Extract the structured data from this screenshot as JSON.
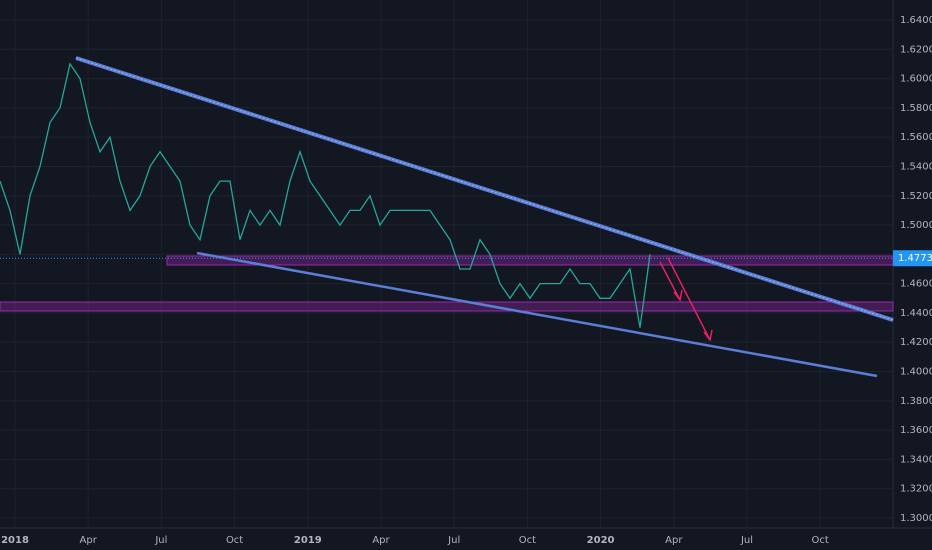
{
  "chart_data": {
    "type": "line",
    "color": "#26a69a",
    "values": [
      1.53,
      1.51,
      1.48,
      1.52,
      1.54,
      1.57,
      1.58,
      1.61,
      1.6,
      1.57,
      1.55,
      1.56,
      1.53,
      1.51,
      1.52,
      1.54,
      1.55,
      1.54,
      1.53,
      1.5,
      1.49,
      1.52,
      1.53,
      1.53,
      1.49,
      1.51,
      1.5,
      1.51,
      1.5,
      1.53,
      1.55,
      1.53,
      1.52,
      1.51,
      1.5,
      1.51,
      1.51,
      1.52,
      1.5,
      1.51,
      1.51,
      1.51,
      1.51,
      1.51,
      1.5,
      1.49,
      1.47,
      1.47,
      1.49,
      1.48,
      1.46,
      1.45,
      1.46,
      1.45,
      1.46,
      1.46,
      1.46,
      1.47,
      1.46,
      1.46,
      1.45,
      1.45,
      1.46,
      1.47,
      1.43,
      1.48
    ],
    "ylim": [
      1.3,
      1.64
    ],
    "yticks": [
      {
        "value": 1.3,
        "label": "1.30000"
      },
      {
        "value": 1.32,
        "label": "1.32000"
      },
      {
        "value": 1.34,
        "label": "1.34000"
      },
      {
        "value": 1.36,
        "label": "1.36000"
      },
      {
        "value": 1.38,
        "label": "1.38000"
      },
      {
        "value": 1.4,
        "label": "1.40000"
      },
      {
        "value": 1.42,
        "label": "1.42000"
      },
      {
        "value": 1.44,
        "label": "1.44000"
      },
      {
        "value": 1.46,
        "label": "1.46000"
      },
      {
        "value": 1.48,
        "label": "1.48000"
      },
      {
        "value": 1.5,
        "label": "1.50000"
      },
      {
        "value": 1.52,
        "label": "1.52000"
      },
      {
        "value": 1.54,
        "label": "1.54000"
      },
      {
        "value": 1.56,
        "label": "1.56000"
      },
      {
        "value": 1.58,
        "label": "1.58000"
      },
      {
        "value": 1.6,
        "label": "1.60000"
      },
      {
        "value": 1.62,
        "label": "1.62000"
      },
      {
        "value": 1.64,
        "label": "1.64000"
      }
    ],
    "xticks": [
      "2018",
      "Apr",
      "Jul",
      "Oct",
      "2019",
      "Apr",
      "Jul",
      "Oct",
      "2020",
      "Apr",
      "Jul",
      "Oct"
    ],
    "last_price": {
      "value": 1.47734,
      "label": "1.47734"
    },
    "grid": true
  }
}
